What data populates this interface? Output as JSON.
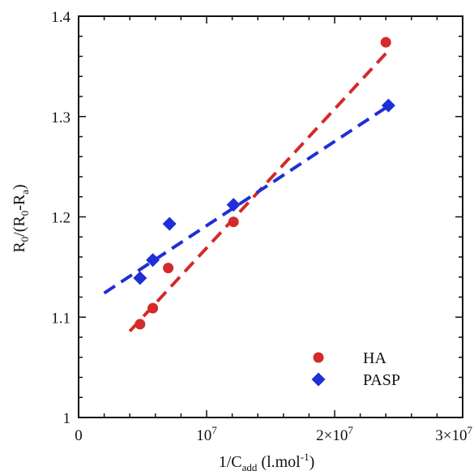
{
  "chart_data": {
    "type": "scatter",
    "title": "",
    "xlim": [
      0,
      30000000
    ],
    "ylim": [
      1.0,
      1.4
    ],
    "x_ticks": [
      {
        "value": 0,
        "base": "0",
        "sup": ""
      },
      {
        "value": 10000000,
        "base": "10",
        "sup": "7"
      },
      {
        "value": 20000000,
        "base": "2×10",
        "sup": "7"
      },
      {
        "value": 30000000,
        "base": "3×10",
        "sup": "7"
      }
    ],
    "y_ticks": [
      {
        "value": 1.0,
        "label": "1"
      },
      {
        "value": 1.1,
        "label": "1.1"
      },
      {
        "value": 1.2,
        "label": "1.2"
      },
      {
        "value": 1.3,
        "label": "1.3"
      },
      {
        "value": 1.4,
        "label": "1.4"
      }
    ],
    "xlabel": {
      "a": "1/C",
      "sub1": "add",
      "b": " (l.mol",
      "sup1": "-1",
      "c": ")"
    },
    "ylabel": {
      "a": "R",
      "sub1": "0",
      "b": "/(R",
      "sub2": "0",
      "c": "-R",
      "sub3": "a",
      "d": ")"
    },
    "grid": false,
    "legend_position": "bottom-right",
    "series": [
      {
        "name": "HA",
        "marker": "circle",
        "color": "#d42a2a",
        "points": [
          {
            "x": 4800000,
            "y": 1.093
          },
          {
            "x": 5800000,
            "y": 1.109
          },
          {
            "x": 7000000,
            "y": 1.149
          },
          {
            "x": 12100000,
            "y": 1.195
          },
          {
            "x": 24000000,
            "y": 1.374
          }
        ],
        "fit": {
          "x0": 4000000,
          "y0": 1.086,
          "x1": 24300000,
          "y1": 1.367,
          "dash": true
        }
      },
      {
        "name": "PASP",
        "marker": "diamond",
        "color": "#1e2fd6",
        "points": [
          {
            "x": 4800000,
            "y": 1.139
          },
          {
            "x": 5800000,
            "y": 1.157
          },
          {
            "x": 7100000,
            "y": 1.193
          },
          {
            "x": 12100000,
            "y": 1.212
          },
          {
            "x": 24200000,
            "y": 1.311
          }
        ],
        "fit": {
          "x0": 2000000,
          "y0": 1.124,
          "x1": 24500000,
          "y1": 1.313,
          "dash": true
        }
      }
    ]
  }
}
